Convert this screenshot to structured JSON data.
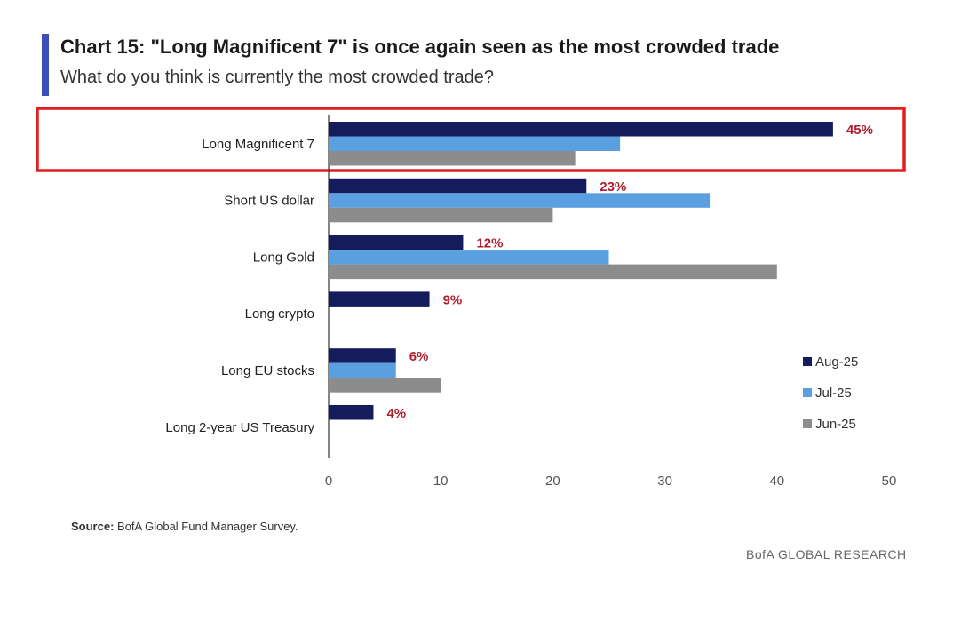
{
  "header": {
    "title": "Chart 15: \"Long Magnificent 7\" is once again seen as the most crowded trade",
    "subtitle": "What do you think is currently the most crowded trade?"
  },
  "footer": {
    "source_label": "Source:",
    "source_text": "BofA Global Fund Manager Survey.",
    "brand": "BofA GLOBAL RESEARCH"
  },
  "colors": {
    "accent": "#3a4fb8",
    "highlight": "#e02020",
    "aug": "#141c5e",
    "jul": "#5aa0e0",
    "jun": "#8c8c8c",
    "label": "#b01e2e",
    "axis": "#555555"
  },
  "chart_data": {
    "type": "bar",
    "orientation": "horizontal",
    "title": "Chart 15: \"Long Magnificent 7\" is once again seen as the most crowded trade",
    "subtitle": "What do you think is currently the most crowded trade?",
    "categories": [
      "Long Magnificent 7",
      "Short US dollar",
      "Long Gold",
      "Long crypto",
      "Long EU stocks",
      "Long 2-year US Treasury"
    ],
    "series": [
      {
        "name": "Aug-25",
        "values": [
          45,
          23,
          12,
          9,
          6,
          4
        ]
      },
      {
        "name": "Jul-25",
        "values": [
          26,
          34,
          25,
          null,
          6,
          null
        ]
      },
      {
        "name": "Jun-25",
        "values": [
          22,
          20,
          40,
          null,
          10,
          null
        ]
      }
    ],
    "data_labels": [
      "45%",
      "23%",
      "12%",
      "9%",
      "6%",
      "4%"
    ],
    "xlim": [
      0,
      50
    ],
    "xticks": [
      0,
      10,
      20,
      30,
      40,
      50
    ],
    "grid": false,
    "legend_position": "bottom-right",
    "highlighted_category": "Long Magnificent 7"
  }
}
